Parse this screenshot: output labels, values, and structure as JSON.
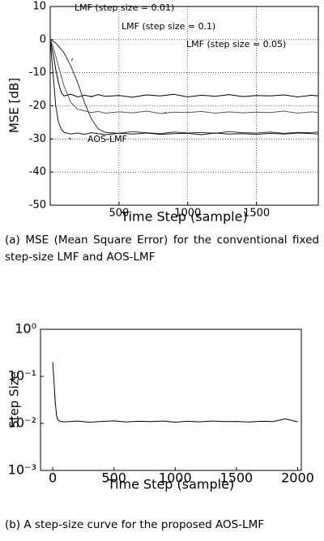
{
  "chart_data": [
    {
      "type": "line",
      "caption": "(a) MSE (Mean Square Error) for the conventional fixed step-size LMF and AOS-LMF",
      "x_label": "Time Step (sample)",
      "y_label": "MSE [dB]",
      "x": [
        0,
        20,
        40,
        60,
        80,
        100,
        150,
        200,
        250,
        300,
        350,
        400,
        500,
        600,
        700,
        800,
        900,
        1000,
        1100,
        1200,
        1300,
        1400,
        1500,
        1600,
        1700,
        1800,
        1900,
        1950
      ],
      "series": [
        {
          "name": "LMF (step size = 0.01)",
          "color": "#333333",
          "values": [
            0,
            -0.5,
            -1,
            -2,
            -3,
            -4,
            -8,
            -13,
            -19,
            -24,
            -27,
            -28,
            -28.3,
            -27.8,
            -28.1,
            -28.4,
            -27.9,
            -28.2,
            -28.0,
            -28.3,
            -27.8,
            -28.1,
            -28.2,
            -27.9,
            -28.3,
            -28.0,
            -28.1,
            -27.9
          ]
        },
        {
          "name": "LMF (step size = 0.1)",
          "color": "#000000",
          "values": [
            0,
            -4,
            -9,
            -13,
            -16,
            -17,
            -16.5,
            -17.3,
            -16.8,
            -17.2,
            -16.6,
            -17.1,
            -16.9,
            -17.4,
            -16.7,
            -17.0,
            -16.5,
            -17.3,
            -16.8,
            -17.1,
            -16.6,
            -17.2,
            -16.9,
            -17.0,
            -16.7,
            -17.3,
            -16.8,
            -17.0
          ]
        },
        {
          "name": "LMF (step size = 0.05)",
          "color": "#555555",
          "values": [
            0,
            -2,
            -5,
            -8,
            -11,
            -14,
            -19,
            -21,
            -21.5,
            -22,
            -21.7,
            -22.2,
            -21.8,
            -22.1,
            -21.6,
            -22.3,
            -21.9,
            -22.0,
            -21.7,
            -22.2,
            -21.8,
            -22.1,
            -21.9,
            -22.0,
            -21.6,
            -22.2,
            -21.8,
            -22.0
          ]
        },
        {
          "name": "AOS-LMF",
          "color": "#111111",
          "values": [
            0,
            -10,
            -20,
            -25,
            -27,
            -28,
            -28.5,
            -28.2,
            -28.6,
            -28.1,
            -28.4,
            -28.7,
            -28.3,
            -28.5,
            -28.2,
            -28.6,
            -28.4,
            -28.3,
            -28.7,
            -28.2,
            -28.5,
            -28.4,
            -28.6,
            -28.3,
            -28.5,
            -28.2,
            -28.4,
            -28.5
          ]
        }
      ],
      "xlim": [
        0,
        1950
      ],
      "xticks": [
        500,
        1000,
        1500
      ],
      "ylim": [
        -50,
        10
      ],
      "yticks": [
        -50,
        -40,
        -30,
        -20,
        -10,
        0,
        10
      ],
      "grid": true,
      "log_y": false
    },
    {
      "type": "line",
      "caption": "(b) A step-size curve for the proposed AOS-LMF",
      "x_label": "Time Step (sample)",
      "y_label": "Step Size",
      "x": [
        0,
        10,
        20,
        30,
        40,
        60,
        100,
        200,
        300,
        400,
        500,
        600,
        700,
        800,
        900,
        1000,
        1100,
        1200,
        1300,
        1400,
        1500,
        1600,
        1700,
        1800,
        1900,
        2000
      ],
      "series": [
        {
          "color": "#000000",
          "values": [
            0.2,
            0.08,
            0.03,
            0.015,
            0.012,
            0.011,
            0.0108,
            0.0112,
            0.0106,
            0.011,
            0.0113,
            0.0107,
            0.0111,
            0.0109,
            0.0112,
            0.0106,
            0.0111,
            0.0108,
            0.0112,
            0.0109,
            0.011,
            0.0107,
            0.0111,
            0.0109,
            0.0125,
            0.0108
          ]
        }
      ],
      "xlim": [
        -100,
        2030
      ],
      "xticks": [
        0,
        500,
        1000,
        1500,
        2000
      ],
      "ylim": [
        0.001,
        1
      ],
      "yticks": [
        {
          "value": 0.001,
          "label": "10⁻³"
        },
        {
          "value": 0.01,
          "label": "10⁻²"
        },
        {
          "value": 0.1,
          "label": "10⁻¹"
        },
        {
          "value": 1,
          "label": "10⁰"
        }
      ],
      "grid": false,
      "log_y": true
    }
  ]
}
